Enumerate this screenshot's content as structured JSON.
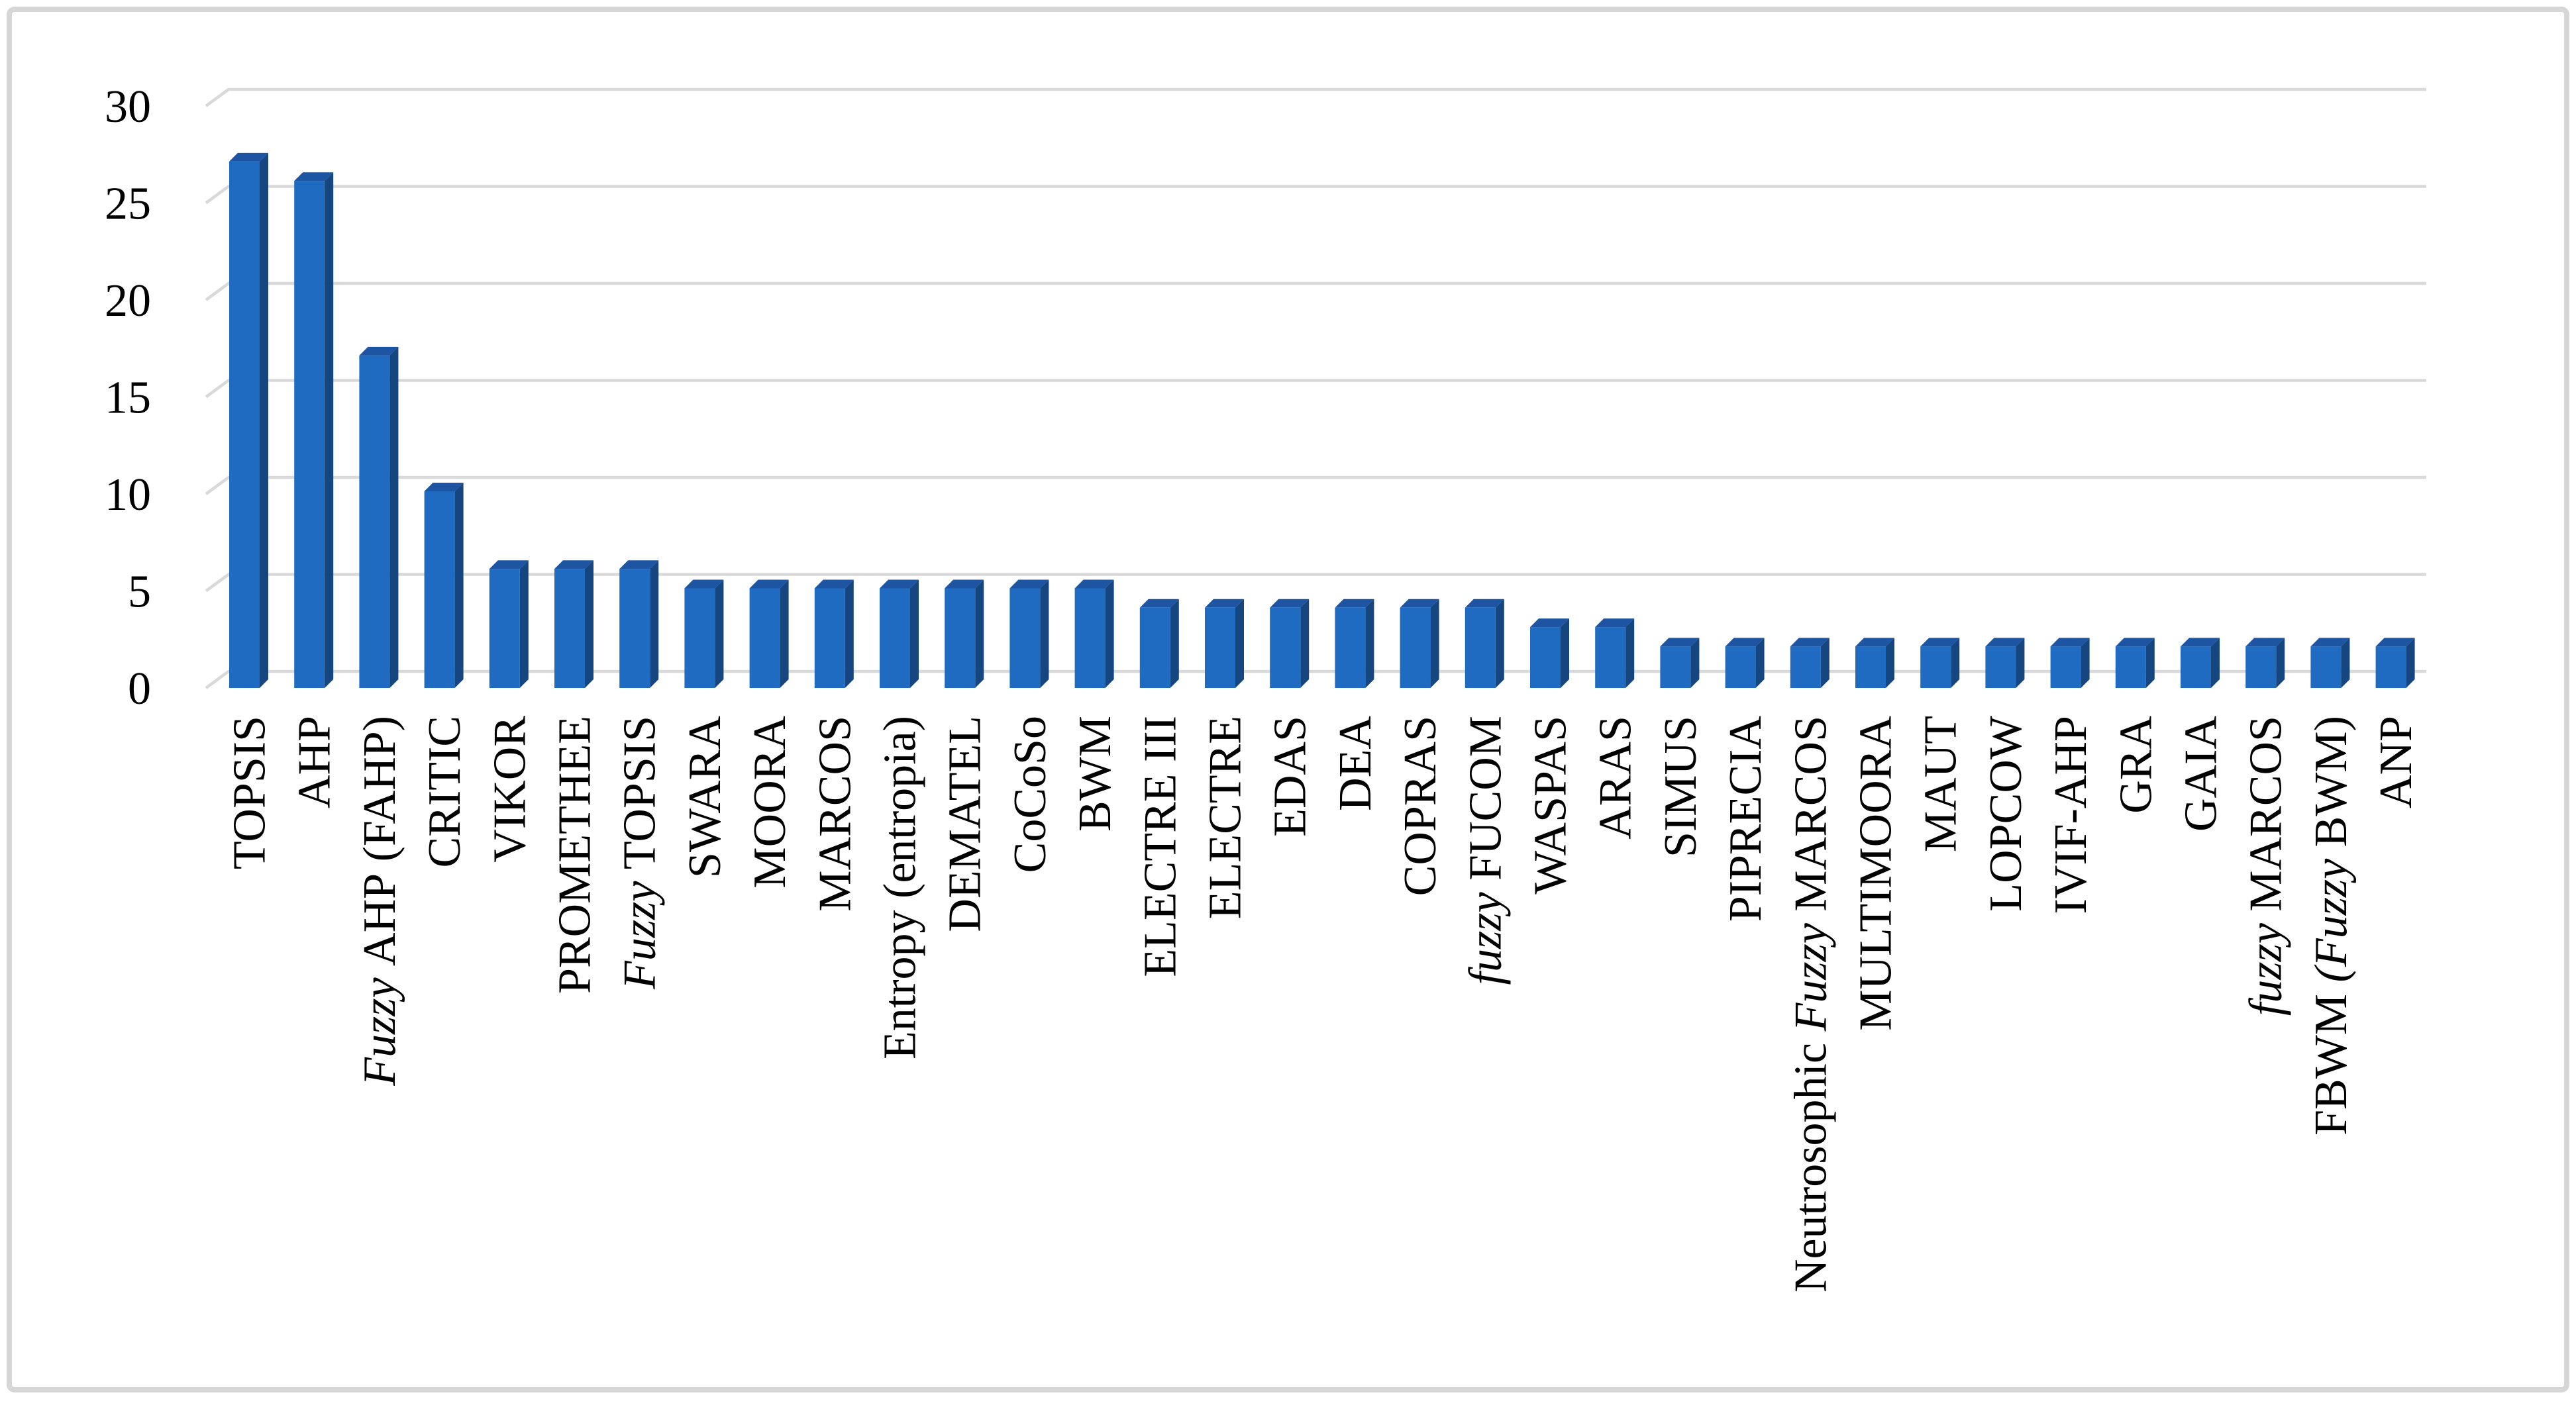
{
  "figure": {
    "background_color": "#FFFFFF",
    "border_color": "#D6D6D6"
  },
  "chart_data": {
    "type": "bar",
    "style": "3d-column",
    "title": "",
    "xlabel": "",
    "ylabel": "",
    "legend": "none",
    "grid": true,
    "x_label_rotation_deg": 90,
    "categories": [
      "TOPSIS",
      "AHP",
      "Fuzzy AHP (FAHP)",
      "CRITIC",
      "VIKOR",
      "PROMETHEE",
      "Fuzzy TOPSIS",
      "SWARA",
      "MOORA",
      "MARCOS",
      "Entropy (entropia)",
      "DEMATEL",
      "CoCoSo",
      "BWM",
      "ELECTRE III",
      "ELECTRE",
      "EDAS",
      "DEA",
      "COPRAS",
      "fuzzy FUCOM",
      "WASPAS",
      "ARAS",
      "SIMUS",
      "PIPRECIA",
      "Neutrosophic Fuzzy MARCOS",
      "MULTIMOORA",
      "MAUT",
      "LOPCOW",
      "IVIF-AHP",
      "GRA",
      "GAIA",
      "fuzzy MARCOS",
      "FBWM (Fuzzy BWM)",
      "ANP"
    ],
    "values": [
      27,
      26,
      17,
      10,
      6,
      6,
      6,
      5,
      5,
      5,
      5,
      5,
      5,
      5,
      4,
      4,
      4,
      4,
      4,
      4,
      3,
      3,
      2,
      2,
      2,
      2,
      2,
      2,
      2,
      2,
      2,
      2,
      2,
      2
    ],
    "y_axis": {
      "min": 0,
      "max": 30,
      "step": 5,
      "tick_labels": [
        "0",
        "5",
        "10",
        "15",
        "20",
        "25",
        "30"
      ]
    },
    "colors": {
      "bar_front": "#1E6BC1",
      "bar_top": "#1D55A2",
      "bar_side": "#164680",
      "gridline": "#D9D9D9",
      "axis_text": "#000000"
    }
  }
}
